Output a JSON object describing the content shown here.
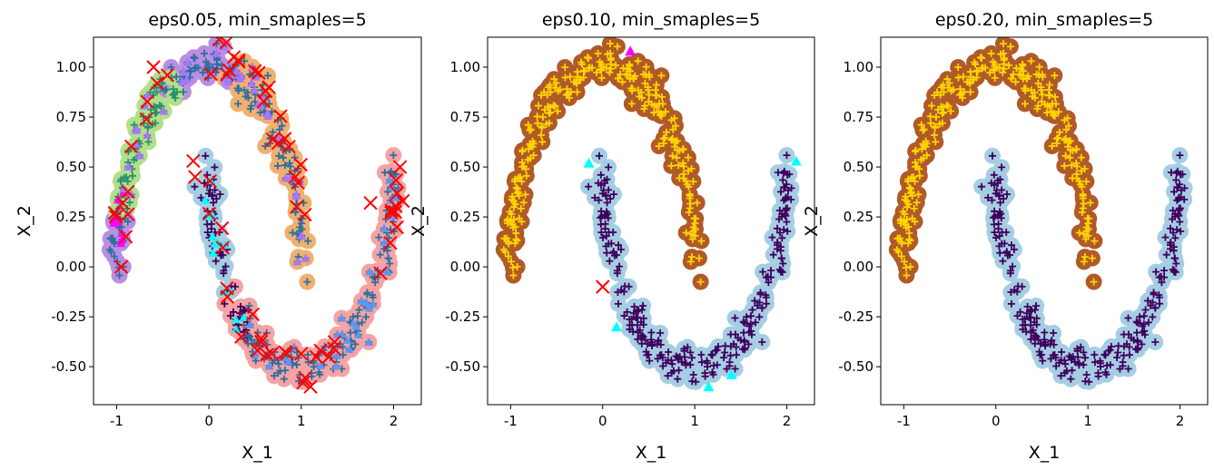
{
  "figure": {
    "colors": {
      "noise": "#ff0000",
      "core_cmap": [
        "#3f005c",
        "#2b6fa0",
        "#2a9070",
        "#74b646",
        "#ffd400"
      ],
      "dbscan_ring": [
        "#a6cee3",
        "#b05a28",
        "#f5a3a3",
        "#f0b070",
        "#b2df8a",
        "#ba8ee0"
      ],
      "border_cmap": [
        "#00ffff",
        "#6495ed",
        "#a875ff",
        "#ff00ff"
      ]
    }
  },
  "chart_data": [
    {
      "type": "scatter",
      "title": "eps0.05, min_smaples=5",
      "xlabel": "X_1",
      "ylabel": "X_2",
      "xlim": [
        -1.25,
        2.3
      ],
      "ylim": [
        -0.69,
        1.15
      ],
      "xticks": [
        "-1",
        "0",
        "1",
        "2"
      ],
      "yticks": [
        "-0.50",
        "-0.25",
        "0.00",
        "0.25",
        "0.50",
        "0.75",
        "1.00"
      ],
      "noise_marker": "x",
      "core_marker": "+",
      "border_marker": "triangle",
      "clusters": 7,
      "noise_examples": [
        [
          -1.02,
          0.27
        ],
        [
          -0.95,
          0.0
        ],
        [
          -0.6,
          1.0
        ],
        [
          -0.45,
          0.96
        ],
        [
          0.27,
          1.05
        ],
        [
          0.65,
          0.9
        ],
        [
          0.75,
          0.62
        ],
        [
          0.95,
          0.3
        ],
        [
          -0.17,
          0.53
        ],
        [
          -0.15,
          0.45
        ],
        [
          0.2,
          -0.15
        ],
        [
          0.35,
          -0.35
        ],
        [
          1.02,
          -0.58
        ],
        [
          1.1,
          -0.6
        ],
        [
          1.3,
          -0.45
        ],
        [
          1.75,
          0.32
        ],
        [
          2.07,
          0.5
        ],
        [
          2.1,
          0.33
        ]
      ]
    },
    {
      "type": "scatter",
      "title": "eps0.10, min_smaples=5",
      "xlabel": "X_1",
      "ylabel": "X_2",
      "xlim": [
        -1.25,
        2.3
      ],
      "ylim": [
        -0.69,
        1.15
      ],
      "xticks": [
        "-1",
        "0",
        "1",
        "2"
      ],
      "yticks": [
        "-0.50",
        "-0.25",
        "0.00",
        "0.25",
        "0.50",
        "0.75",
        "1.00"
      ],
      "noise_marker": "x",
      "core_marker": "+",
      "border_marker": "triangle",
      "clusters": 2,
      "noise_examples": [
        [
          0.0,
          -0.1
        ]
      ],
      "border_examples": [
        [
          -0.15,
          0.52
        ],
        [
          0.15,
          -0.3
        ],
        [
          1.15,
          -0.6
        ],
        [
          1.4,
          -0.54
        ],
        [
          2.1,
          0.53
        ],
        [
          0.3,
          1.08
        ]
      ]
    },
    {
      "type": "scatter",
      "title": "eps0.20, min_smaples=5",
      "xlabel": "X_1",
      "ylabel": "X_2",
      "xlim": [
        -1.25,
        2.3
      ],
      "ylim": [
        -0.69,
        1.15
      ],
      "xticks": [
        "-1",
        "0",
        "1",
        "2"
      ],
      "yticks": [
        "-0.50",
        "-0.25",
        "0.00",
        "0.25",
        "0.50",
        "0.75",
        "1.00"
      ],
      "noise_marker": "x",
      "core_marker": "+",
      "border_marker": "triangle",
      "clusters": 2
    }
  ]
}
